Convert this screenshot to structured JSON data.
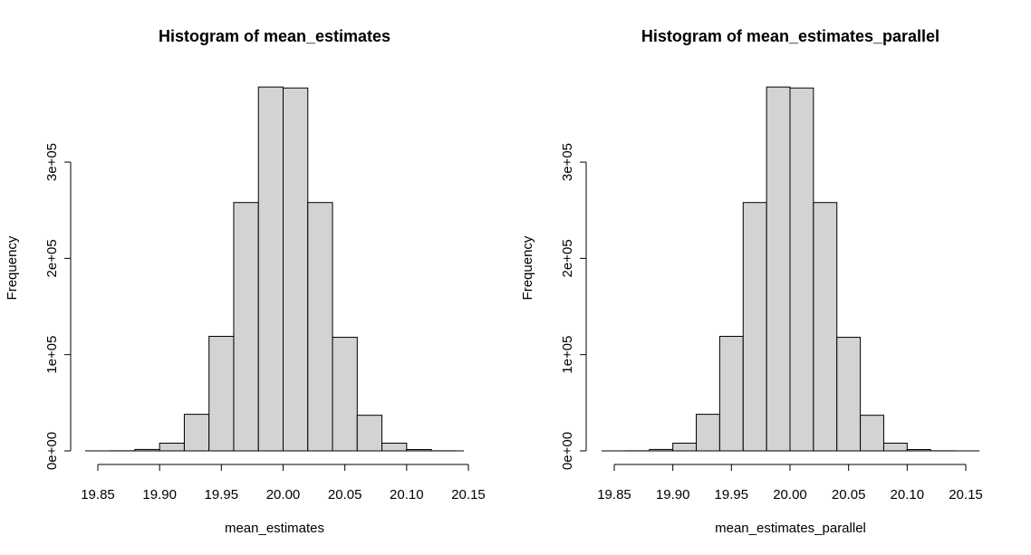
{
  "chart_data": [
    {
      "type": "bar",
      "title": "Histogram of mean_estimates",
      "xlabel": "mean_estimates",
      "ylabel": "Frequency",
      "bin_edges": [
        19.86,
        19.88,
        19.9,
        19.92,
        19.94,
        19.96,
        19.98,
        20.0,
        20.02,
        20.04,
        20.06,
        20.08,
        20.1,
        20.12,
        20.14
      ],
      "values": [
        100,
        1500,
        8000,
        38000,
        119000,
        258000,
        378000,
        377000,
        258000,
        118000,
        37000,
        8000,
        1400,
        100
      ],
      "xlim": [
        19.85,
        20.15
      ],
      "ylim": [
        0,
        380000
      ],
      "x_ticks": [
        19.85,
        19.9,
        19.95,
        20.0,
        20.05,
        20.1,
        20.15
      ],
      "x_tick_labels": [
        "19.85",
        "19.90",
        "19.95",
        "20.00",
        "20.05",
        "20.10",
        "20.15"
      ],
      "y_ticks": [
        0,
        100000,
        200000,
        300000
      ],
      "y_tick_labels": [
        "0e+00",
        "1e+05",
        "2e+05",
        "3e+05"
      ],
      "bar_color": "#d3d3d3"
    },
    {
      "type": "bar",
      "title": "Histogram of mean_estimates_parallel",
      "xlabel": "mean_estimates_parallel",
      "ylabel": "Frequency",
      "bin_edges": [
        19.86,
        19.88,
        19.9,
        19.92,
        19.94,
        19.96,
        19.98,
        20.0,
        20.02,
        20.04,
        20.06,
        20.08,
        20.1,
        20.12,
        20.14
      ],
      "values": [
        100,
        1500,
        8000,
        38000,
        119000,
        258000,
        378000,
        377000,
        258000,
        118000,
        37000,
        8000,
        1400,
        100
      ],
      "xlim": [
        19.85,
        20.15
      ],
      "ylim": [
        0,
        380000
      ],
      "x_ticks": [
        19.85,
        19.9,
        19.95,
        20.0,
        20.05,
        20.1,
        20.15
      ],
      "x_tick_labels": [
        "19.85",
        "19.90",
        "19.95",
        "20.00",
        "20.05",
        "20.10",
        "20.15"
      ],
      "y_ticks": [
        0,
        100000,
        200000,
        300000
      ],
      "y_tick_labels": [
        "0e+00",
        "1e+05",
        "2e+05",
        "3e+05"
      ],
      "bar_color": "#d3d3d3"
    }
  ]
}
